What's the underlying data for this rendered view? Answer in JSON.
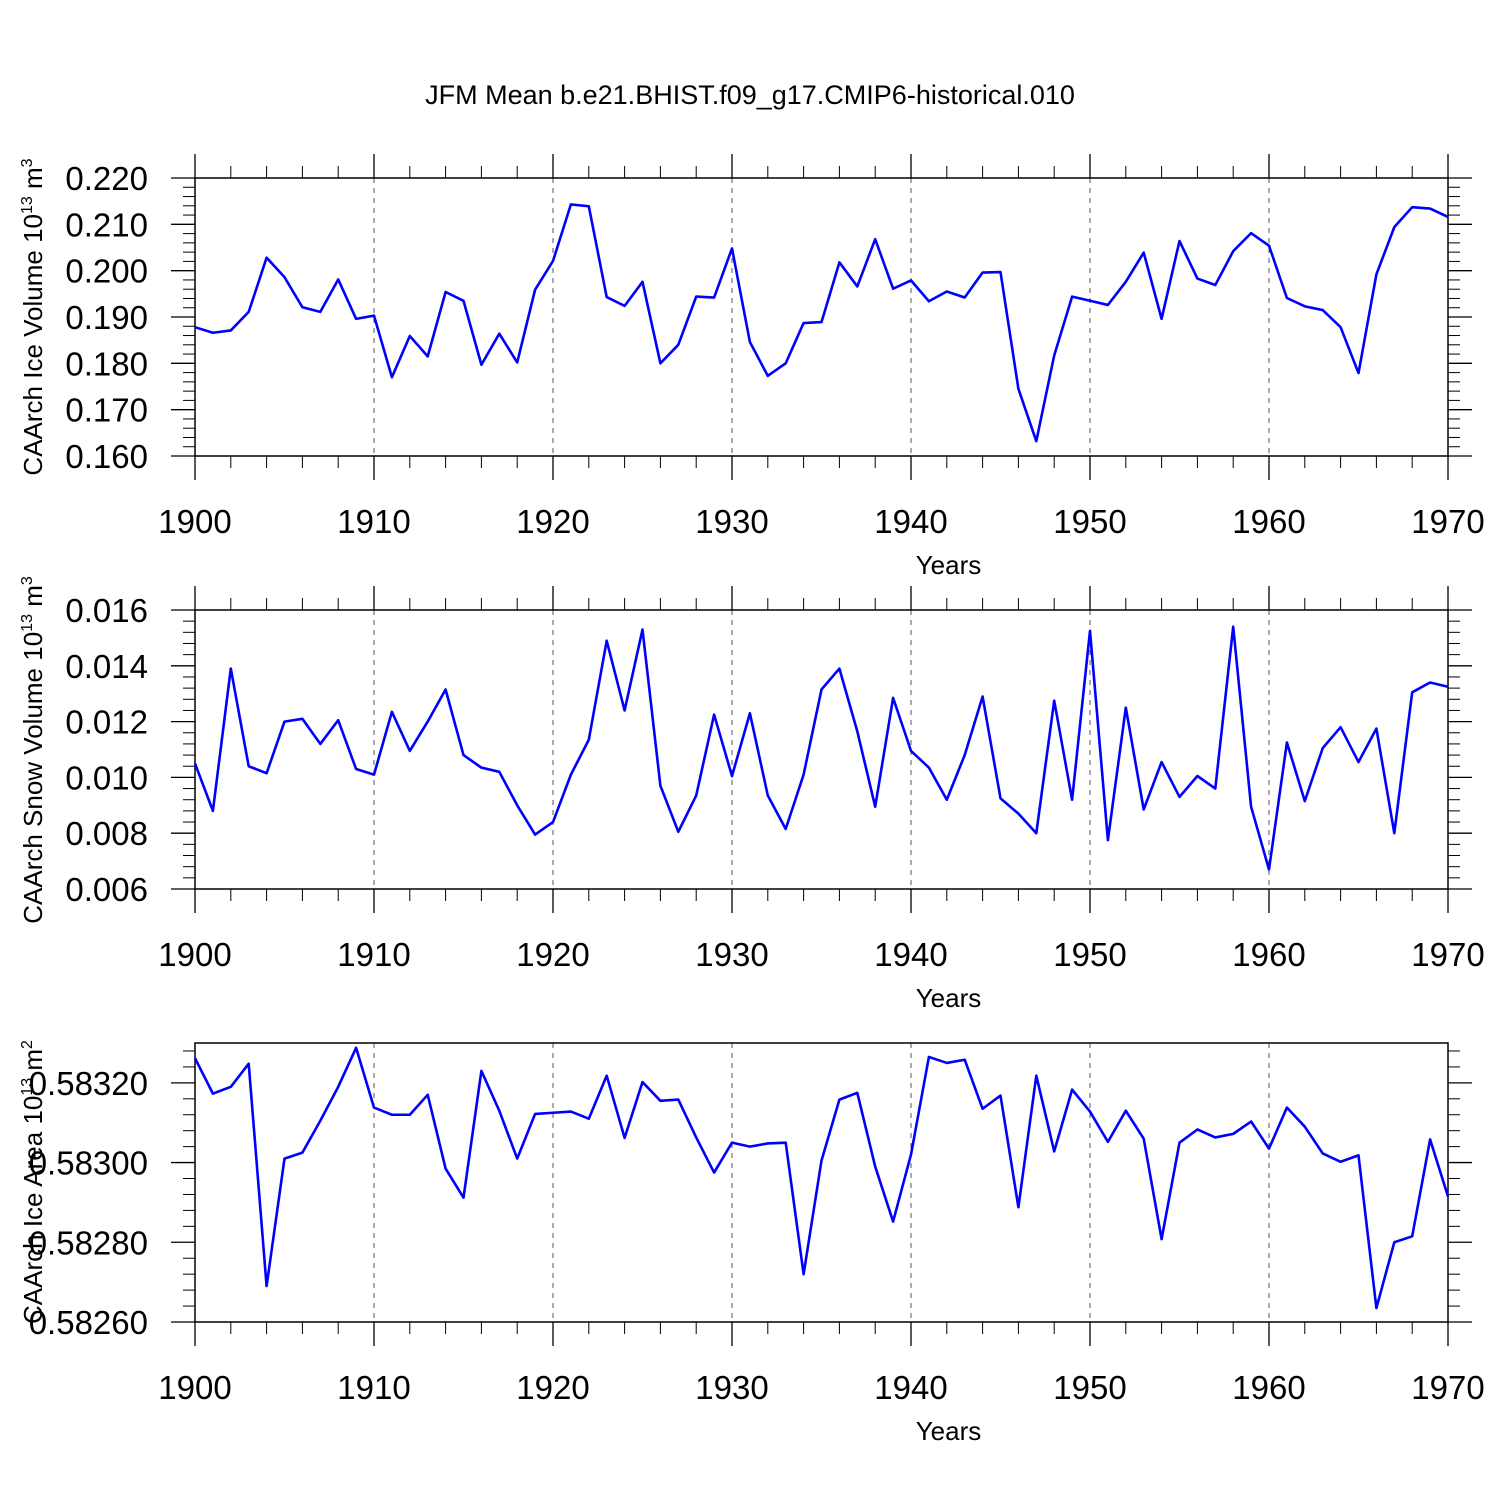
{
  "title": "JFM Mean b.e21.BHIST.f09_g17.CMIP6-historical.010",
  "colors": {
    "series": "#0000ff",
    "axis": "#000000",
    "grid": "#555555"
  },
  "chart_data": [
    {
      "type": "line",
      "ylabel": "CAArch Ice Volume 10",
      "ylabel_sup": "13",
      "ylabel_unit": " m",
      "ylabel_unit_sup": "3",
      "xlabel": "Years",
      "xlim": [
        1900,
        1970
      ],
      "ylim": [
        0.16,
        0.22
      ],
      "xticks": [
        1900,
        1910,
        1920,
        1930,
        1940,
        1950,
        1960,
        1970
      ],
      "xtick_labels": [
        "1900",
        "1910",
        "1920",
        "1930",
        "1940",
        "1950",
        "1960",
        "1970"
      ],
      "yticks": [
        0.16,
        0.17,
        0.18,
        0.19,
        0.2,
        0.21,
        0.22
      ],
      "ytick_labels": [
        "0.160",
        "0.170",
        "0.180",
        "0.190",
        "0.200",
        "0.210",
        "0.220"
      ],
      "grid": "vertical dashed at decades",
      "x": [
        1900,
        1901,
        1902,
        1903,
        1904,
        1905,
        1906,
        1907,
        1908,
        1909,
        1910,
        1911,
        1912,
        1913,
        1914,
        1915,
        1916,
        1917,
        1918,
        1919,
        1920,
        1921,
        1922,
        1923,
        1924,
        1925,
        1926,
        1927,
        1928,
        1929,
        1930,
        1931,
        1932,
        1933,
        1934,
        1935,
        1936,
        1937,
        1938,
        1939,
        1940,
        1941,
        1942,
        1943,
        1944,
        1945,
        1946,
        1947,
        1948,
        1949,
        1950,
        1951,
        1952,
        1953,
        1954,
        1955,
        1956,
        1957,
        1958,
        1959,
        1960,
        1961,
        1962,
        1963,
        1964,
        1965,
        1966,
        1967,
        1968,
        1969,
        1970
      ],
      "values": [
        0.1878,
        0.1866,
        0.1871,
        0.1911,
        0.2028,
        0.1986,
        0.1921,
        0.1911,
        0.1981,
        0.1896,
        0.1903,
        0.177,
        0.1859,
        0.1815,
        0.1954,
        0.1935,
        0.1797,
        0.1864,
        0.1802,
        0.1959,
        0.2021,
        0.2143,
        0.2139,
        0.1943,
        0.1924,
        0.1976,
        0.18,
        0.184,
        0.1944,
        0.1942,
        0.2048,
        0.1846,
        0.1773,
        0.18,
        0.1887,
        0.1889,
        0.2018,
        0.1966,
        0.2068,
        0.1961,
        0.1979,
        0.1934,
        0.1955,
        0.1942,
        0.1996,
        0.1997,
        0.1745,
        0.1632,
        0.1817,
        0.1944,
        0.1935,
        0.1926,
        0.1976,
        0.2039,
        0.1896,
        0.2064,
        0.1983,
        0.1969,
        0.2042,
        0.2081,
        0.2054,
        0.1941,
        0.1923,
        0.1915,
        0.1878,
        0.1779,
        0.1992,
        0.2094,
        0.2137,
        0.2134,
        0.2116
      ]
    },
    {
      "type": "line",
      "ylabel": "CAArch Snow Volume 10",
      "ylabel_sup": "13",
      "ylabel_unit": " m",
      "ylabel_unit_sup": "3",
      "xlabel": "Years",
      "xlim": [
        1900,
        1970
      ],
      "ylim": [
        0.006,
        0.016
      ],
      "xticks": [
        1900,
        1910,
        1920,
        1930,
        1940,
        1950,
        1960,
        1970
      ],
      "xtick_labels": [
        "1900",
        "1910",
        "1920",
        "1930",
        "1940",
        "1950",
        "1960",
        "1970"
      ],
      "yticks": [
        0.006,
        0.008,
        0.01,
        0.012,
        0.014,
        0.016
      ],
      "ytick_labels": [
        "0.006",
        "0.008",
        "0.010",
        "0.012",
        "0.014",
        "0.016"
      ],
      "grid": "vertical dashed at decades",
      "x": [
        1900,
        1901,
        1902,
        1903,
        1904,
        1905,
        1906,
        1907,
        1908,
        1909,
        1910,
        1911,
        1912,
        1913,
        1914,
        1915,
        1916,
        1917,
        1918,
        1919,
        1920,
        1921,
        1922,
        1923,
        1924,
        1925,
        1926,
        1927,
        1928,
        1929,
        1930,
        1931,
        1932,
        1933,
        1934,
        1935,
        1936,
        1937,
        1938,
        1939,
        1940,
        1941,
        1942,
        1943,
        1944,
        1945,
        1946,
        1947,
        1948,
        1949,
        1950,
        1951,
        1952,
        1953,
        1954,
        1955,
        1956,
        1957,
        1958,
        1959,
        1960,
        1961,
        1962,
        1963,
        1964,
        1965,
        1966,
        1967,
        1968,
        1969,
        1970
      ],
      "values": [
        0.0105,
        0.0088,
        0.0139,
        0.0104,
        0.01015,
        0.012,
        0.0121,
        0.0112,
        0.01205,
        0.0103,
        0.0101,
        0.01235,
        0.01095,
        0.012,
        0.01315,
        0.0108,
        0.01035,
        0.0102,
        0.009,
        0.00795,
        0.0084,
        0.0101,
        0.01135,
        0.0149,
        0.0124,
        0.0153,
        0.0097,
        0.00805,
        0.00935,
        0.01225,
        0.01005,
        0.0123,
        0.00935,
        0.00815,
        0.0101,
        0.01315,
        0.0139,
        0.01165,
        0.00895,
        0.01285,
        0.01095,
        0.01035,
        0.0092,
        0.0108,
        0.0129,
        0.00925,
        0.0087,
        0.008,
        0.01275,
        0.0092,
        0.01525,
        0.00775,
        0.0125,
        0.00885,
        0.01055,
        0.0093,
        0.01005,
        0.0096,
        0.0154,
        0.00895,
        0.0067,
        0.01125,
        0.00915,
        0.01105,
        0.0118,
        0.01055,
        0.01175,
        0.008,
        0.01305,
        0.0134,
        0.01325
      ]
    },
    {
      "type": "line",
      "ylabel": "CAArch Ice Area 10",
      "ylabel_sup": "13",
      "ylabel_unit": " m",
      "ylabel_unit_sup": "2",
      "xlabel": "Years",
      "xlim": [
        1900,
        1970
      ],
      "ylim": [
        0.5826,
        0.5833
      ],
      "xticks": [
        1900,
        1910,
        1920,
        1930,
        1940,
        1950,
        1960,
        1970
      ],
      "xtick_labels": [
        "1900",
        "1910",
        "1920",
        "1930",
        "1940",
        "1950",
        "1960",
        "1970"
      ],
      "yticks": [
        0.5826,
        0.5828,
        0.583,
        0.5832
      ],
      "ytick_labels": [
        "0.58260",
        "0.58280",
        "0.58300",
        "0.58320"
      ],
      "grid": "vertical dashed at decades",
      "x": [
        1900,
        1901,
        1902,
        1903,
        1904,
        1905,
        1906,
        1907,
        1908,
        1909,
        1910,
        1911,
        1912,
        1913,
        1914,
        1915,
        1916,
        1917,
        1918,
        1919,
        1920,
        1921,
        1922,
        1923,
        1924,
        1925,
        1926,
        1927,
        1928,
        1929,
        1930,
        1931,
        1932,
        1933,
        1934,
        1935,
        1936,
        1937,
        1938,
        1939,
        1940,
        1941,
        1942,
        1943,
        1944,
        1945,
        1946,
        1947,
        1948,
        1949,
        1950,
        1951,
        1952,
        1953,
        1954,
        1955,
        1956,
        1957,
        1958,
        1959,
        1960,
        1961,
        1962,
        1963,
        1964,
        1965,
        1966,
        1967,
        1968,
        1969,
        1970
      ],
      "values": [
        0.583262,
        0.583173,
        0.58319,
        0.583248,
        0.58269,
        0.58301,
        0.583025,
        0.583105,
        0.58319,
        0.583288,
        0.583138,
        0.58312,
        0.58312,
        0.58317,
        0.582985,
        0.582912,
        0.58323,
        0.58313,
        0.58301,
        0.583122,
        0.583125,
        0.583128,
        0.58311,
        0.583218,
        0.583062,
        0.583202,
        0.583155,
        0.583158,
        0.583063,
        0.582975,
        0.58305,
        0.58304,
        0.583048,
        0.58305,
        0.58272,
        0.583005,
        0.583158,
        0.583175,
        0.58299,
        0.582852,
        0.58302,
        0.583265,
        0.58325,
        0.583258,
        0.583135,
        0.583168,
        0.582888,
        0.583218,
        0.583028,
        0.583183,
        0.583128,
        0.583052,
        0.58313,
        0.58306,
        0.582808,
        0.58305,
        0.583083,
        0.583063,
        0.583072,
        0.583103,
        0.583035,
        0.583138,
        0.58309,
        0.583023,
        0.583002,
        0.583018,
        0.582635,
        0.5828,
        0.582815,
        0.583058,
        0.582915
      ]
    }
  ]
}
